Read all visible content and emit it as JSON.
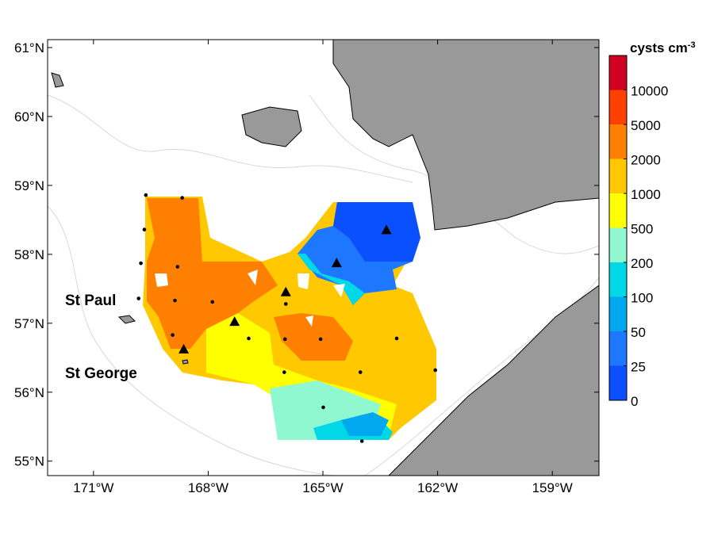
{
  "map": {
    "lon_range": [
      -172.2,
      -157.78
    ],
    "lat_range": [
      54.79,
      61.115
    ],
    "lat_ticks": [
      {
        "value": 55,
        "label": "55°N"
      },
      {
        "value": 56,
        "label": "56°N"
      },
      {
        "value": 57,
        "label": "57°N"
      },
      {
        "value": 58,
        "label": "58°N"
      },
      {
        "value": 59,
        "label": "59°N"
      },
      {
        "value": 60,
        "label": "60°N"
      },
      {
        "value": 61,
        "label": "61°N"
      }
    ],
    "lon_ticks": [
      {
        "value": -171,
        "label": "171°W"
      },
      {
        "value": -168,
        "label": "168°W"
      },
      {
        "value": -165,
        "label": "165°W"
      },
      {
        "value": -162,
        "label": "162°W"
      },
      {
        "value": -159,
        "label": "159°W"
      }
    ],
    "place_labels": [
      "St Paul",
      "St George"
    ],
    "stations": [
      [
        -169.63,
        58.86
      ],
      [
        -168.68,
        58.82
      ],
      [
        -169.67,
        58.36
      ],
      [
        -169.76,
        57.87
      ],
      [
        -168.8,
        57.82
      ],
      [
        -169.82,
        57.36
      ],
      [
        -168.87,
        57.33
      ],
      [
        -167.89,
        57.31
      ],
      [
        -168.93,
        56.83
      ],
      [
        -166.94,
        56.78
      ],
      [
        -165.97,
        57.28
      ],
      [
        -165.99,
        56.77
      ],
      [
        -165.06,
        56.77
      ],
      [
        -166.01,
        56.29
      ],
      [
        -164.02,
        56.29
      ],
      [
        -163.07,
        56.78
      ],
      [
        -162.06,
        56.32
      ],
      [
        -164.99,
        55.78
      ],
      [
        -163.98,
        55.29
      ]
    ],
    "triangle_stations": [
      [
        -163.34,
        58.35
      ],
      [
        -164.64,
        57.87
      ],
      [
        -165.97,
        57.45
      ],
      [
        -167.31,
        57.02
      ],
      [
        -168.64,
        56.62
      ]
    ]
  },
  "colorbar": {
    "title": "cysts cm",
    "title_exponent": "-3",
    "levels": [
      0,
      25,
      50,
      100,
      200,
      500,
      1000,
      2000,
      5000,
      10000
    ],
    "colors": [
      "#0a50ff",
      "#1e78ff",
      "#00a8f0",
      "#00d8e8",
      "#90f8d0",
      "#ffff00",
      "#ffc800",
      "#ff8000",
      "#ff4000",
      "#d00020"
    ]
  }
}
